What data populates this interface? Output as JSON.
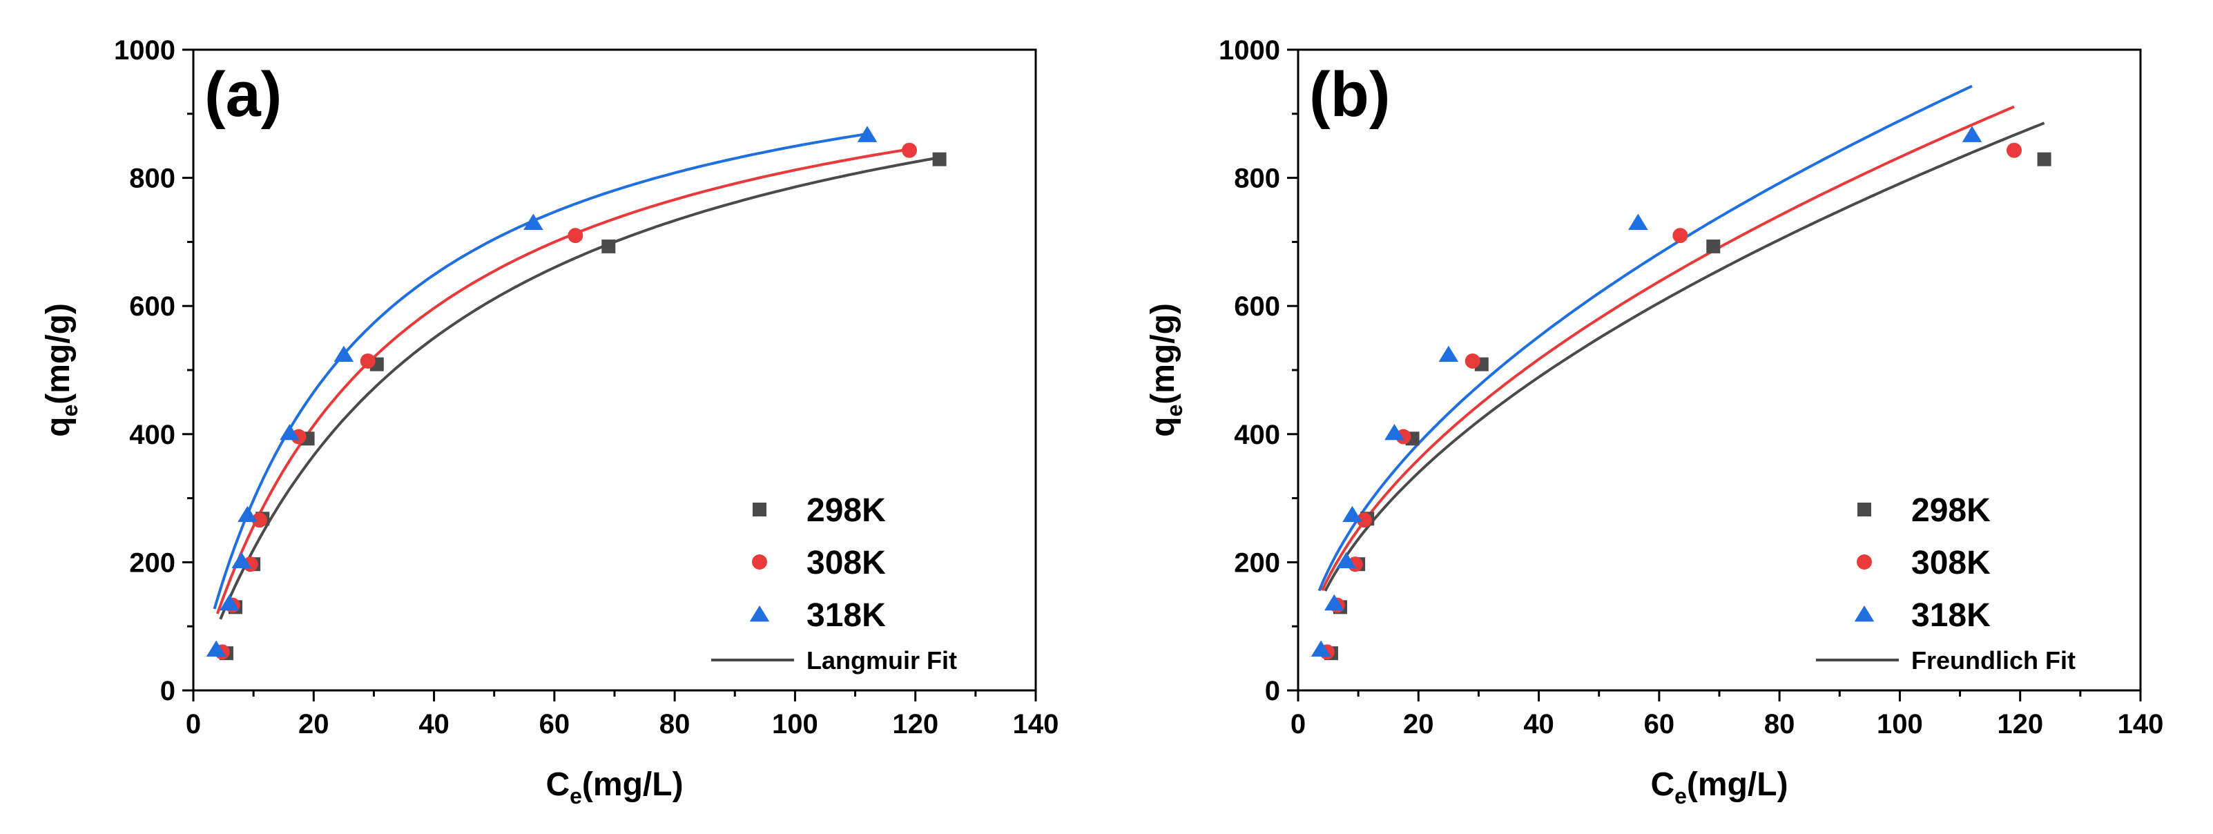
{
  "chart_data": [
    {
      "type": "scatter",
      "panel_label": "(a)",
      "xlabel": "C",
      "xlabel_sub": "e",
      "xlabel_unit": "(mg/L)",
      "ylabel": "q",
      "ylabel_sub": "e",
      "ylabel_unit": "(mg/g)",
      "xlim": [
        0,
        140
      ],
      "ylim": [
        0,
        1000
      ],
      "xticks": [
        "0",
        "20",
        "40",
        "60",
        "80",
        "100",
        "120",
        "140"
      ],
      "yticks": [
        "0",
        "200",
        "400",
        "600",
        "800",
        "1000"
      ],
      "legend_position": "bottom-right",
      "series": [
        {
          "name": "298K",
          "marker": "square",
          "color": "#4a4a4a",
          "x": [
            5.5,
            7,
            10,
            11.5,
            19,
            30.5,
            69,
            124
          ],
          "y": [
            58,
            130,
            197,
            268,
            393,
            509,
            693,
            829
          ]
        },
        {
          "name": "308K",
          "marker": "circle",
          "color": "#e83a3a",
          "x": [
            4.8,
            6.5,
            9.5,
            11,
            17.5,
            29,
            63.5,
            119
          ],
          "y": [
            60,
            133,
            197,
            266,
            396,
            514,
            710,
            843
          ]
        },
        {
          "name": "318K",
          "marker": "triangle",
          "color": "#1f6fe0",
          "x": [
            3.8,
            6,
            8,
            9,
            16,
            25,
            56.5,
            112
          ],
          "y": [
            64,
            136,
            202,
            274,
            402,
            524,
            730,
            867
          ]
        }
      ],
      "fit": {
        "name": "Langmuir Fit",
        "model": "langmuir",
        "curves": [
          {
            "series": "298K",
            "color": "#4a4a4a",
            "qm": 1100,
            "K": 0.025,
            "x_range": [
              4.5,
              124
            ]
          },
          {
            "series": "308K",
            "color": "#e83a3a",
            "qm": 1070,
            "K": 0.0315,
            "x_range": [
              4,
              119
            ]
          },
          {
            "series": "318K",
            "color": "#1f6fe0",
            "qm": 1070,
            "K": 0.0385,
            "x_range": [
              3.5,
              112
            ]
          }
        ]
      }
    },
    {
      "type": "scatter",
      "panel_label": "(b)",
      "xlabel": "C",
      "xlabel_sub": "e",
      "xlabel_unit": "(mg/L)",
      "ylabel": "q",
      "ylabel_sub": "e",
      "ylabel_unit": "(mg/g)",
      "xlim": [
        0,
        140
      ],
      "ylim": [
        0,
        1000
      ],
      "xticks": [
        "0",
        "20",
        "40",
        "60",
        "80",
        "100",
        "120",
        "140"
      ],
      "yticks": [
        "0",
        "200",
        "400",
        "600",
        "800",
        "1000"
      ],
      "legend_position": "bottom-right",
      "series": [
        {
          "name": "298K",
          "marker": "square",
          "color": "#4a4a4a",
          "x": [
            5.5,
            7,
            10,
            11.5,
            19,
            30.5,
            69,
            124
          ],
          "y": [
            58,
            130,
            197,
            268,
            393,
            509,
            693,
            829
          ]
        },
        {
          "name": "308K",
          "marker": "circle",
          "color": "#e83a3a",
          "x": [
            4.8,
            6.5,
            9.5,
            11,
            17.5,
            29,
            63.5,
            119
          ],
          "y": [
            60,
            133,
            197,
            266,
            396,
            514,
            710,
            843
          ]
        },
        {
          "name": "318K",
          "marker": "triangle",
          "color": "#1f6fe0",
          "x": [
            3.8,
            6,
            8,
            9,
            16,
            25,
            56.5,
            112
          ],
          "y": [
            64,
            136,
            202,
            274,
            402,
            524,
            730,
            867
          ]
        }
      ],
      "fit": {
        "name": "Freundlich Fit",
        "model": "freundlich",
        "curves": [
          {
            "series": "298K",
            "color": "#4a4a4a",
            "KF": 70.5,
            "n_inv": 0.525,
            "x_range": [
              4.5,
              124
            ]
          },
          {
            "series": "308K",
            "color": "#e83a3a",
            "KF": 75.9,
            "n_inv": 0.52,
            "x_range": [
              4,
              119
            ]
          },
          {
            "series": "318K",
            "color": "#1f6fe0",
            "KF": 81.1,
            "n_inv": 0.52,
            "x_range": [
              3.5,
              112
            ]
          }
        ]
      }
    }
  ]
}
